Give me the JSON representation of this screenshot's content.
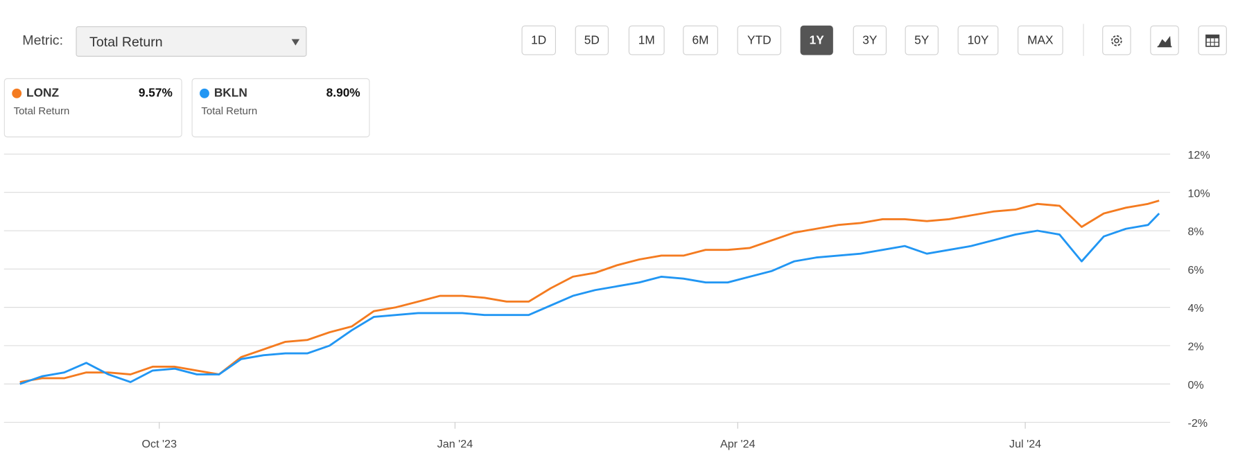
{
  "toolbar": {
    "metric_label": "Metric:",
    "metric_value": "Total Return",
    "ranges": [
      "1D",
      "5D",
      "1M",
      "6M",
      "YTD",
      "1Y",
      "3Y",
      "5Y",
      "10Y",
      "MAX"
    ],
    "active_range": "1Y"
  },
  "chart_data": {
    "type": "line",
    "x": [
      0,
      1,
      2,
      3,
      4,
      5,
      6,
      7,
      8,
      9,
      10,
      11,
      12,
      13,
      14,
      15,
      16,
      17,
      18,
      19,
      20,
      21,
      22,
      23,
      24,
      25,
      26,
      27,
      28,
      29,
      30,
      31,
      32,
      33,
      34,
      35,
      36,
      37,
      38,
      39,
      40,
      41,
      42,
      43,
      44,
      45,
      46,
      47,
      48,
      49,
      50,
      51,
      51.5
    ],
    "xlim": [
      -0.72,
      52
    ],
    "xticks": [
      {
        "value": 6.3,
        "label": "Oct '23"
      },
      {
        "value": 19.67,
        "label": "Jan '24"
      },
      {
        "value": 32.45,
        "label": "Apr '24"
      },
      {
        "value": 45.45,
        "label": "Jul '24"
      }
    ],
    "ylim": [
      -2,
      12
    ],
    "yticks": [
      {
        "value": -2,
        "label": "-2%"
      },
      {
        "value": 0,
        "label": "0%"
      },
      {
        "value": 2,
        "label": "2%"
      },
      {
        "value": 4,
        "label": "4%"
      },
      {
        "value": 6,
        "label": "6%"
      },
      {
        "value": 8,
        "label": "8%"
      },
      {
        "value": 10,
        "label": "10%"
      },
      {
        "value": 12,
        "label": "12%"
      }
    ],
    "grid": true,
    "series": [
      {
        "name": "LONZ",
        "color": "#f47b20",
        "last_value_label": "9.57%",
        "card_subtitle": "Total Return",
        "values": [
          0.1,
          0.3,
          0.3,
          0.6,
          0.6,
          0.5,
          0.9,
          0.9,
          0.7,
          0.5,
          1.4,
          1.8,
          2.2,
          2.3,
          2.7,
          3.0,
          3.8,
          4.0,
          4.3,
          4.6,
          4.6,
          4.5,
          4.3,
          4.3,
          5.0,
          5.6,
          5.8,
          6.2,
          6.5,
          6.7,
          6.7,
          7.0,
          7.0,
          7.1,
          7.5,
          7.9,
          8.1,
          8.3,
          8.4,
          8.6,
          8.6,
          8.5,
          8.6,
          8.8,
          9.0,
          9.1,
          9.4,
          9.3,
          8.2,
          8.9,
          9.2,
          9.4,
          9.57
        ]
      },
      {
        "name": "BKLN",
        "color": "#2196f3",
        "last_value_label": "8.90%",
        "card_subtitle": "Total Return",
        "values": [
          0.0,
          0.4,
          0.6,
          1.1,
          0.5,
          0.1,
          0.7,
          0.8,
          0.5,
          0.5,
          1.3,
          1.5,
          1.6,
          1.6,
          2.0,
          2.8,
          3.5,
          3.6,
          3.7,
          3.7,
          3.7,
          3.6,
          3.6,
          3.6,
          4.1,
          4.6,
          4.9,
          5.1,
          5.3,
          5.6,
          5.5,
          5.3,
          5.3,
          5.6,
          5.9,
          6.4,
          6.6,
          6.7,
          6.8,
          7.0,
          7.2,
          6.8,
          7.0,
          7.2,
          7.5,
          7.8,
          8.0,
          7.8,
          6.4,
          7.7,
          8.1,
          8.3,
          8.9
        ]
      }
    ]
  }
}
